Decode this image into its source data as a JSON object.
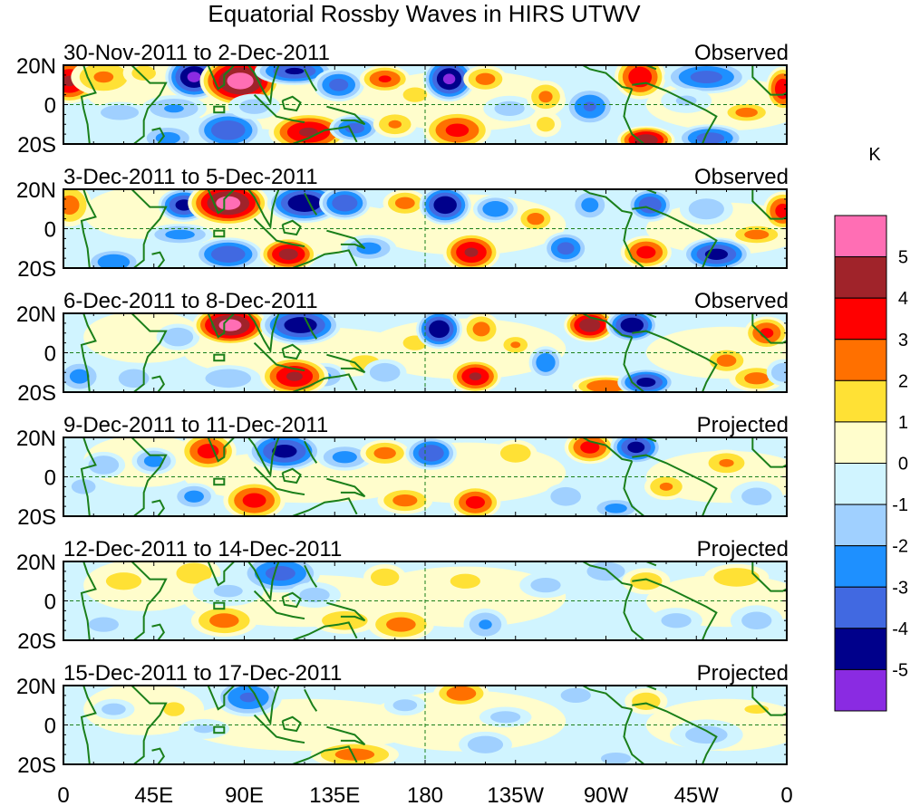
{
  "chart_data": {
    "type": "heatmap",
    "title": "Equatorial Rossby Waves in HIRS UTWV",
    "units_label": "K",
    "xlabel": "",
    "ylabel": "",
    "xlim": [
      0,
      360
    ],
    "ylim": [
      -20,
      20
    ],
    "x_ticks": [
      {
        "lon": 0,
        "label": "0"
      },
      {
        "lon": 45,
        "label": "45E"
      },
      {
        "lon": 90,
        "label": "90E"
      },
      {
        "lon": 135,
        "label": "135E"
      },
      {
        "lon": 180,
        "label": "180"
      },
      {
        "lon": 225,
        "label": "135W"
      },
      {
        "lon": 270,
        "label": "90W"
      },
      {
        "lon": 315,
        "label": "45W"
      },
      {
        "lon": 360,
        "label": "0"
      }
    ],
    "y_ticks": [
      {
        "lat": 20,
        "label": "20N"
      },
      {
        "lat": 0,
        "label": "0"
      },
      {
        "lat": -20,
        "label": "20S"
      }
    ],
    "colorbar": {
      "levels": [
        "-5",
        "-4",
        "-3",
        "-2",
        "-1",
        "0",
        "1",
        "2",
        "3",
        "4",
        "5"
      ],
      "colors": [
        "#8a2be2",
        "#00008b",
        "#4169e1",
        "#1e90ff",
        "#a0d0ff",
        "#d0f4ff",
        "#fffdcc",
        "#ffe135",
        "#ff7000",
        "#ff0000",
        "#a0232a",
        "#ff6eb4"
      ]
    },
    "reference_lines": {
      "equator_lat": 0,
      "dateline_lon": 180,
      "box": {
        "lon": [
          75,
          80
        ],
        "lat": [
          -4,
          -1
        ]
      }
    },
    "panels": [
      {
        "date_range": "30-Nov-2011 to 2-Dec-2011",
        "status": "Observed",
        "features": [
          [
            3,
            12,
            4.2,
            10,
            8
          ],
          [
            20,
            14,
            2.2,
            12,
            7
          ],
          [
            40,
            16,
            1.5,
            8,
            5
          ],
          [
            28,
            -4,
            -2,
            10,
            4
          ],
          [
            55,
            -2,
            -2.2,
            12,
            5
          ],
          [
            52,
            -17,
            -2.5,
            10,
            5
          ],
          [
            65,
            14,
            -5.2,
            10,
            8
          ],
          [
            88,
            12,
            5.6,
            14,
            9
          ],
          [
            82,
            -13,
            -4,
            12,
            7
          ],
          [
            95,
            -1,
            -1.5,
            10,
            5
          ],
          [
            115,
            17,
            -4.2,
            14,
            5
          ],
          [
            122,
            -14,
            4.2,
            14,
            7
          ],
          [
            137,
            10,
            -3.5,
            9,
            6
          ],
          [
            145,
            -12,
            -3.5,
            9,
            5
          ],
          [
            160,
            13,
            3.2,
            9,
            5
          ],
          [
            165,
            -10,
            2.2,
            8,
            5
          ],
          [
            175,
            5,
            1.5,
            8,
            5
          ],
          [
            192,
            13,
            -5.2,
            9,
            8
          ],
          [
            196,
            -13,
            3.4,
            12,
            7
          ],
          [
            210,
            13,
            2.5,
            8,
            5
          ],
          [
            222,
            -2,
            -1.5,
            10,
            5
          ],
          [
            240,
            4,
            2.3,
            7,
            6
          ],
          [
            240,
            -10,
            1.5,
            6,
            5
          ],
          [
            262,
            -1,
            -3.2,
            9,
            7
          ],
          [
            287,
            14,
            3.8,
            9,
            8
          ],
          [
            290,
            -18,
            4.8,
            10,
            5
          ],
          [
            320,
            14,
            -3.5,
            15,
            6
          ],
          [
            322,
            -17,
            -3.6,
            12,
            5
          ],
          [
            340,
            -4,
            2.5,
            9,
            4
          ],
          [
            358,
            8,
            3.8,
            6,
            8
          ],
          [
            310,
            2,
            -1.2,
            10,
            5
          ]
        ]
      },
      {
        "date_range": "3-Dec-2011 to 5-Dec-2011",
        "status": "Observed",
        "features": [
          [
            3,
            12,
            2.5,
            8,
            8
          ],
          [
            25,
            -17,
            -3,
            10,
            5
          ],
          [
            60,
            12,
            -4.5,
            9,
            6
          ],
          [
            58,
            -3,
            -2.5,
            12,
            4
          ],
          [
            82,
            13,
            5.5,
            14,
            8
          ],
          [
            82,
            -13,
            -4,
            12,
            6
          ],
          [
            120,
            13,
            -5,
            13,
            7
          ],
          [
            112,
            -13,
            4.5,
            10,
            6
          ],
          [
            140,
            13,
            -4,
            9,
            6
          ],
          [
            152,
            -10,
            -2.5,
            10,
            5
          ],
          [
            170,
            13,
            2.5,
            8,
            5
          ],
          [
            190,
            12,
            -5,
            9,
            7
          ],
          [
            203,
            -12,
            4.2,
            10,
            7
          ],
          [
            215,
            10,
            -3,
            8,
            5
          ],
          [
            235,
            5,
            2.5,
            7,
            5
          ],
          [
            250,
            -10,
            -3.5,
            8,
            6
          ],
          [
            262,
            12,
            -2.5,
            7,
            6
          ],
          [
            292,
            12,
            -4,
            8,
            6
          ],
          [
            290,
            -12,
            3.5,
            9,
            6
          ],
          [
            325,
            -13,
            -4.5,
            12,
            6
          ],
          [
            345,
            -3,
            2.5,
            10,
            4
          ],
          [
            358,
            9,
            3.5,
            7,
            7
          ],
          [
            320,
            10,
            -1.8,
            10,
            6
          ]
        ]
      },
      {
        "date_range": "6-Dec-2011 to 8-Dec-2011",
        "status": "Observed",
        "features": [
          [
            8,
            -12,
            -2.5,
            8,
            6
          ],
          [
            35,
            -13,
            -2,
            8,
            5
          ],
          [
            57,
            8,
            -2,
            8,
            5
          ],
          [
            83,
            14,
            5.5,
            13,
            7
          ],
          [
            82,
            -13,
            -2,
            12,
            5
          ],
          [
            118,
            14,
            -4.8,
            14,
            7
          ],
          [
            130,
            -12,
            -2.2,
            8,
            5
          ],
          [
            150,
            -5,
            1.5,
            10,
            5
          ],
          [
            115,
            -12,
            4.2,
            12,
            7
          ],
          [
            160,
            -10,
            -2,
            8,
            5
          ],
          [
            175,
            5,
            1.5,
            8,
            5
          ],
          [
            187,
            12,
            -5,
            8,
            7
          ],
          [
            205,
            -12,
            4.2,
            9,
            6
          ],
          [
            208,
            12,
            2.5,
            7,
            6
          ],
          [
            225,
            4,
            2.2,
            6,
            4
          ],
          [
            240,
            -5,
            -3,
            6,
            6
          ],
          [
            262,
            14,
            4.8,
            9,
            6
          ],
          [
            283,
            14,
            -5,
            9,
            6
          ],
          [
            270,
            -17,
            3,
            12,
            4
          ],
          [
            290,
            -15,
            -4.5,
            10,
            5
          ],
          [
            330,
            -4,
            2.5,
            8,
            5
          ],
          [
            345,
            -13,
            2.5,
            10,
            5
          ],
          [
            350,
            10,
            3.3,
            8,
            6
          ],
          [
            358,
            -10,
            -2,
            6,
            5
          ]
        ]
      },
      {
        "date_range": "9-Dec-2011 to 11-Dec-2011",
        "status": "Projected",
        "features": [
          [
            20,
            6,
            -2,
            8,
            5
          ],
          [
            10,
            -5,
            -1.5,
            8,
            5
          ],
          [
            45,
            8,
            -2.5,
            8,
            5
          ],
          [
            72,
            13,
            3.5,
            10,
            7
          ],
          [
            65,
            -10,
            -2.5,
            8,
            5
          ],
          [
            95,
            -12,
            3.5,
            11,
            7
          ],
          [
            110,
            13,
            -4.5,
            13,
            7
          ],
          [
            140,
            10,
            -2.5,
            10,
            5
          ],
          [
            160,
            12,
            2.5,
            9,
            5
          ],
          [
            170,
            -12,
            2.5,
            10,
            5
          ],
          [
            183,
            12,
            -4,
            9,
            6
          ],
          [
            205,
            -13,
            3.5,
            9,
            6
          ],
          [
            225,
            12,
            2,
            8,
            5
          ],
          [
            250,
            -10,
            -2,
            8,
            5
          ],
          [
            262,
            15,
            3.5,
            9,
            6
          ],
          [
            285,
            15,
            -4.5,
            9,
            6
          ],
          [
            275,
            -16,
            -2.5,
            9,
            4
          ],
          [
            300,
            -5,
            2.2,
            8,
            5
          ],
          [
            330,
            7,
            2.2,
            9,
            5
          ],
          [
            345,
            -10,
            -1.5,
            10,
            6
          ]
        ]
      },
      {
        "date_range": "12-Dec-2011 to 14-Dec-2011",
        "status": "Projected",
        "features": [
          [
            30,
            10,
            1.8,
            10,
            5
          ],
          [
            20,
            -12,
            -1.5,
            10,
            5
          ],
          [
            65,
            14,
            1.8,
            10,
            6
          ],
          [
            80,
            -10,
            2.5,
            12,
            6
          ],
          [
            82,
            5,
            -1.2,
            14,
            6
          ],
          [
            108,
            14,
            -3.5,
            14,
            7
          ],
          [
            125,
            3,
            -1.5,
            10,
            5
          ],
          [
            140,
            -10,
            2,
            12,
            5
          ],
          [
            160,
            12,
            1.8,
            8,
            5
          ],
          [
            168,
            -12,
            2.5,
            12,
            6
          ],
          [
            200,
            10,
            1.5,
            10,
            5
          ],
          [
            210,
            -12,
            -2.2,
            8,
            6
          ],
          [
            240,
            8,
            -1.5,
            10,
            5
          ],
          [
            270,
            15,
            -2,
            10,
            5
          ],
          [
            290,
            10,
            1.8,
            9,
            5
          ],
          [
            305,
            -10,
            -1.5,
            10,
            5
          ],
          [
            335,
            12,
            2,
            12,
            5
          ],
          [
            345,
            -10,
            -1.5,
            10,
            6
          ]
        ]
      },
      {
        "date_range": "15-Dec-2011 to 17-Dec-2011",
        "status": "Projected",
        "features": [
          [
            25,
            8,
            -1.5,
            8,
            4
          ],
          [
            55,
            8,
            1.8,
            6,
            4
          ],
          [
            92,
            14,
            -3.2,
            12,
            7
          ],
          [
            70,
            -2,
            -1.2,
            10,
            4
          ],
          [
            145,
            -15,
            2.5,
            16,
            5
          ],
          [
            170,
            10,
            -1.5,
            8,
            4
          ],
          [
            198,
            16,
            2.8,
            10,
            5
          ],
          [
            220,
            4,
            -1.5,
            10,
            4
          ],
          [
            210,
            -10,
            -1.8,
            10,
            5
          ],
          [
            255,
            15,
            -1.5,
            10,
            5
          ],
          [
            290,
            12,
            1.8,
            8,
            5
          ],
          [
            275,
            -17,
            -1.5,
            10,
            4
          ],
          [
            320,
            -5,
            -1.5,
            14,
            6
          ],
          [
            345,
            8,
            1.5,
            8,
            3
          ]
        ]
      }
    ]
  }
}
